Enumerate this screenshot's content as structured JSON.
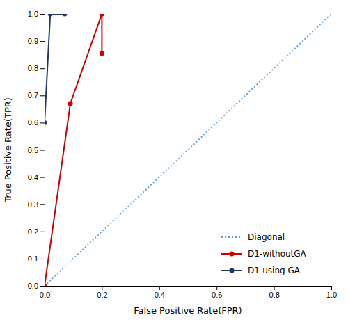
{
  "chart_data": {
    "type": "line",
    "x_label": "False Positive Rate(FPR)",
    "y_label": "True Positive Rate(TPR)",
    "series": [
      {
        "name": "Diagonal",
        "color": "#5b9bd5",
        "line_style": "dotted",
        "x": [
          0,
          1
        ],
        "values": [
          0,
          1
        ]
      },
      {
        "name": "D1-withoutGA",
        "color": "#cc0000",
        "marker": "circle",
        "x": [
          0.0,
          0.09,
          0.2,
          0.2
        ],
        "values": [
          0.0,
          0.67,
          1.0,
          0.855
        ]
      },
      {
        "name": "D1-using GA",
        "color": "#1f3864",
        "marker": "circle",
        "x": [
          0.0,
          0.02,
          0.07
        ],
        "values": [
          0.6,
          1.0,
          1.0
        ]
      }
    ],
    "xlim": [
      0,
      1.0
    ],
    "ylim": [
      0,
      1.0
    ],
    "xticks": [
      {
        "value": 0,
        "label": "0.0"
      },
      0.2,
      0.4,
      0.6,
      0.8,
      {
        "value": 1.0,
        "label": "1.0"
      }
    ],
    "yticks": [
      {
        "value": 0,
        "label": "0.0"
      },
      0.1,
      0.2,
      0.3,
      0.4,
      0.5,
      0.6,
      0.7,
      0.8,
      0.9,
      {
        "value": 1.0,
        "label": "1.0"
      }
    ],
    "grid": false,
    "legend": "lower right"
  }
}
